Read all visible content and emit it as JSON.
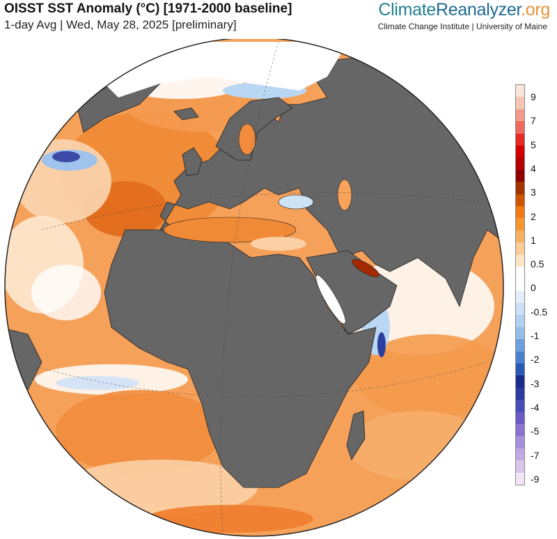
{
  "header": {
    "title": "OISST SST Anomaly (°C) [1971-2000 baseline]",
    "subtitle": "1-day Avg | Wed, May 28, 2025 [preliminary]"
  },
  "brand": {
    "name_part1": "Climate",
    "name_part2": "Reanalyzer",
    "name_part3": ".org",
    "affiliation": "Climate Change Institute | University of Maine"
  },
  "colors": {
    "land": "#666666",
    "ocean_neutral": "#ffffff",
    "ice": "#ffffff",
    "anomaly_warm": "#f28c3c",
    "anomaly_cool": "#b9d8f2",
    "brand_climate": "#1f7f8f",
    "brand_reanalyzer": "#1f6a8f",
    "brand_org": "#e8913a"
  },
  "legend": {
    "labels": [
      "9",
      "7",
      "5",
      "4",
      "3",
      "2",
      "1",
      "0.5",
      "0",
      "-0.5",
      "-1",
      "-2",
      "-3",
      "-4",
      "-5",
      "-7",
      "-9"
    ],
    "bands": [
      "#fbe4dc",
      "#f6c5b3",
      "#f29a8a",
      "#ed6a60",
      "#e52b25",
      "#d20000",
      "#b30000",
      "#8c0000",
      "#a33300",
      "#cc5500",
      "#f07a16",
      "#f5962f",
      "#f8b063",
      "#fbcc98",
      "#fde6c8",
      "#ffffff",
      "#ffffff",
      "#e4eefa",
      "#ccdff5",
      "#b3d0f0",
      "#94bdea",
      "#6e9fdc",
      "#4a7fcc",
      "#2a58b5",
      "#1a2c8c",
      "#2c3aa0",
      "#4a4db8",
      "#6a5cc4",
      "#8a74d0",
      "#a690da",
      "#c0aae2",
      "#d9c6ec",
      "#f2e6f4"
    ]
  }
}
